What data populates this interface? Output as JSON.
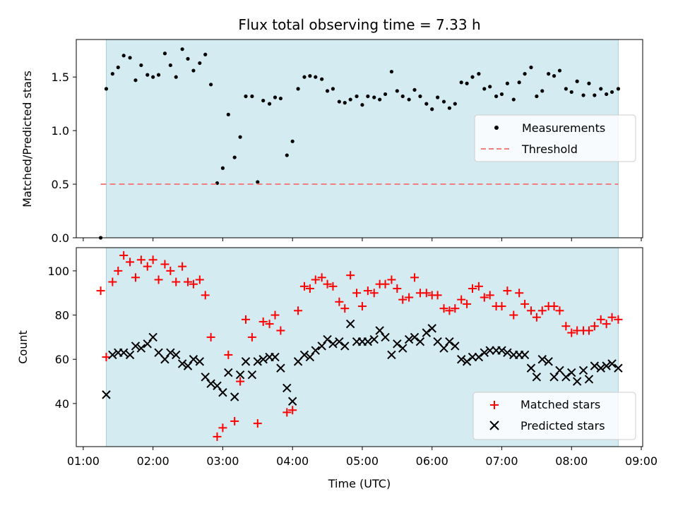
{
  "chart_data": [
    {
      "type": "scatter",
      "title": "Flux total observing time = 7.33 h",
      "ylabel": "Matched/Predicted stars",
      "xlabel": "",
      "x_unit": "hours (UTC)",
      "xlim": [
        0.9,
        9.02
      ],
      "ylim": [
        0,
        1.85
      ],
      "yticks": [
        0,
        0.5,
        1.0,
        1.5
      ],
      "ytick_labels": [
        "0.0",
        "0.5",
        "1.0",
        "1.5"
      ],
      "xticks": [
        1,
        2,
        3,
        4,
        5,
        6,
        7,
        8,
        9
      ],
      "observing_window": [
        1.33,
        8.67
      ],
      "shade_color": "#d4ebf2",
      "legend": {
        "position": "center-right",
        "entries": [
          "Measurements",
          "Threshold"
        ]
      },
      "series": [
        {
          "name": "Measurements",
          "style": "points",
          "color": "#000000",
          "x": [
            1.25,
            1.33,
            1.42,
            1.5,
            1.58,
            1.67,
            1.75,
            1.83,
            1.92,
            2.0,
            2.08,
            2.17,
            2.25,
            2.33,
            2.42,
            2.5,
            2.58,
            2.67,
            2.75,
            2.83,
            2.92,
            3.0,
            3.08,
            3.17,
            3.25,
            3.33,
            3.42,
            3.5,
            3.58,
            3.67,
            3.75,
            3.83,
            3.92,
            4.0,
            4.08,
            4.17,
            4.25,
            4.33,
            4.42,
            4.5,
            4.58,
            4.67,
            4.75,
            4.83,
            4.92,
            5.0,
            5.08,
            5.17,
            5.25,
            5.33,
            5.42,
            5.5,
            5.58,
            5.67,
            5.75,
            5.83,
            5.92,
            6.0,
            6.08,
            6.17,
            6.25,
            6.33,
            6.42,
            6.5,
            6.58,
            6.67,
            6.75,
            6.83,
            6.92,
            7.0,
            7.08,
            7.17,
            7.25,
            7.33,
            7.42,
            7.5,
            7.58,
            7.67,
            7.75,
            7.83,
            7.92,
            8.0,
            8.08,
            8.17,
            8.25,
            8.33,
            8.42,
            8.5,
            8.58,
            8.67
          ],
          "y": [
            0.0,
            1.39,
            1.53,
            1.59,
            1.7,
            1.68,
            1.47,
            1.61,
            1.52,
            1.5,
            1.52,
            1.72,
            1.61,
            1.5,
            1.76,
            1.67,
            1.56,
            1.63,
            1.71,
            1.43,
            0.51,
            0.65,
            1.15,
            0.75,
            0.94,
            1.32,
            1.32,
            0.52,
            1.28,
            1.25,
            1.31,
            1.3,
            0.77,
            0.9,
            1.39,
            1.5,
            1.51,
            1.5,
            1.48,
            1.37,
            1.39,
            1.27,
            1.26,
            1.29,
            1.32,
            1.24,
            1.32,
            1.31,
            1.29,
            1.34,
            1.55,
            1.37,
            1.32,
            1.29,
            1.38,
            1.32,
            1.25,
            1.2,
            1.31,
            1.27,
            1.21,
            1.25,
            1.45,
            1.44,
            1.5,
            1.53,
            1.39,
            1.41,
            1.32,
            1.34,
            1.44,
            1.29,
            1.45,
            1.53,
            1.59,
            1.32,
            1.37,
            1.53,
            1.51,
            1.56,
            1.39,
            1.36,
            1.46,
            1.33,
            1.44,
            1.33,
            1.39,
            1.34,
            1.36,
            1.39
          ]
        },
        {
          "name": "Threshold",
          "style": "dashed-line",
          "color": "#f08080",
          "x": [
            1.25,
            8.67
          ],
          "y": [
            0.5,
            0.5
          ]
        }
      ]
    },
    {
      "type": "scatter",
      "title": "",
      "ylabel": "Count",
      "xlabel": "Time (UTC)",
      "x_unit": "hours (UTC)",
      "xlim": [
        0.9,
        9.02
      ],
      "ylim": [
        20.5,
        110.5
      ],
      "yticks": [
        40,
        60,
        80,
        100
      ],
      "ytick_labels": [
        "40",
        "60",
        "80",
        "100"
      ],
      "xticks": [
        1,
        2,
        3,
        4,
        5,
        6,
        7,
        8,
        9
      ],
      "xtick_labels": [
        "01:00",
        "02:00",
        "03:00",
        "04:00",
        "05:00",
        "06:00",
        "07:00",
        "08:00",
        "09:00"
      ],
      "observing_window": [
        1.33,
        8.67
      ],
      "shade_color": "#d4ebf2",
      "legend": {
        "position": "lower-right",
        "entries": [
          "Matched stars",
          "Predicted stars"
        ]
      },
      "series": [
        {
          "name": "Matched stars",
          "marker": "plus",
          "color": "#ff0000",
          "x": [
            1.25,
            1.33,
            1.42,
            1.5,
            1.58,
            1.67,
            1.75,
            1.83,
            1.92,
            2.0,
            2.08,
            2.17,
            2.25,
            2.33,
            2.42,
            2.5,
            2.58,
            2.67,
            2.75,
            2.83,
            2.92,
            3.0,
            3.08,
            3.17,
            3.25,
            3.33,
            3.42,
            3.5,
            3.58,
            3.67,
            3.75,
            3.83,
            3.92,
            4.0,
            4.08,
            4.17,
            4.25,
            4.33,
            4.42,
            4.5,
            4.58,
            4.67,
            4.75,
            4.83,
            4.92,
            5.0,
            5.08,
            5.17,
            5.25,
            5.33,
            5.42,
            5.5,
            5.58,
            5.67,
            5.75,
            5.83,
            5.92,
            6.0,
            6.08,
            6.17,
            6.25,
            6.33,
            6.42,
            6.5,
            6.58,
            6.67,
            6.75,
            6.83,
            6.92,
            7.0,
            7.08,
            7.17,
            7.25,
            7.33,
            7.42,
            7.5,
            7.58,
            7.67,
            7.75,
            7.83,
            7.92,
            8.0,
            8.08,
            8.17,
            8.25,
            8.33,
            8.42,
            8.5,
            8.58,
            8.67
          ],
          "y": [
            91,
            61,
            95,
            100,
            107,
            104,
            97,
            105,
            102,
            105,
            96,
            103,
            100,
            95,
            102,
            95,
            94,
            96,
            89,
            70,
            25,
            29,
            62,
            32,
            50,
            78,
            70,
            31,
            77,
            76,
            80,
            73,
            36,
            37,
            82,
            93,
            92,
            96,
            97,
            94,
            93,
            86,
            83,
            98,
            90,
            84,
            91,
            90,
            94,
            94,
            96,
            92,
            87,
            88,
            97,
            90,
            90,
            89,
            89,
            83,
            82,
            83,
            87,
            85,
            92,
            93,
            88,
            89,
            84,
            84,
            91,
            80,
            90,
            85,
            82,
            79,
            82,
            84,
            84,
            82,
            75,
            72,
            73,
            73,
            73,
            75,
            78,
            76,
            79,
            78
          ]
        },
        {
          "name": "Predicted stars",
          "marker": "x",
          "color": "#000000",
          "x": [
            1.33,
            1.42,
            1.5,
            1.58,
            1.67,
            1.75,
            1.83,
            1.92,
            2.0,
            2.08,
            2.17,
            2.25,
            2.33,
            2.42,
            2.5,
            2.58,
            2.67,
            2.75,
            2.83,
            2.92,
            3.0,
            3.08,
            3.17,
            3.25,
            3.33,
            3.42,
            3.5,
            3.58,
            3.67,
            3.75,
            3.83,
            3.92,
            4.0,
            4.08,
            4.17,
            4.25,
            4.33,
            4.42,
            4.5,
            4.58,
            4.67,
            4.75,
            4.83,
            4.92,
            5.0,
            5.08,
            5.17,
            5.25,
            5.33,
            5.42,
            5.5,
            5.58,
            5.67,
            5.75,
            5.83,
            5.92,
            6.0,
            6.08,
            6.17,
            6.25,
            6.33,
            6.42,
            6.5,
            6.58,
            6.67,
            6.75,
            6.83,
            6.92,
            7.0,
            7.08,
            7.17,
            7.25,
            7.33,
            7.42,
            7.5,
            7.58,
            7.67,
            7.75,
            7.83,
            7.92,
            8.0,
            8.08,
            8.17,
            8.25,
            8.33,
            8.42,
            8.5,
            8.58,
            8.67
          ],
          "y": [
            44,
            62,
            63,
            63,
            62,
            66,
            65,
            67,
            70,
            63,
            60,
            63,
            62,
            58,
            57,
            60,
            59,
            52,
            49,
            48,
            45,
            54,
            43,
            53,
            59,
            53,
            59,
            60,
            61,
            61,
            56,
            47,
            41,
            59,
            62,
            61,
            64,
            66,
            69,
            67,
            68,
            66,
            76,
            68,
            68,
            68,
            69,
            73,
            70,
            62,
            67,
            65,
            69,
            70,
            68,
            72,
            74,
            68,
            65,
            68,
            66,
            60,
            59,
            61,
            61,
            63,
            64,
            64,
            64,
            63,
            62,
            62,
            62,
            56,
            52,
            60,
            59,
            52,
            55,
            52,
            54,
            50,
            55,
            51,
            57,
            56,
            57,
            58,
            56
          ]
        }
      ]
    }
  ]
}
